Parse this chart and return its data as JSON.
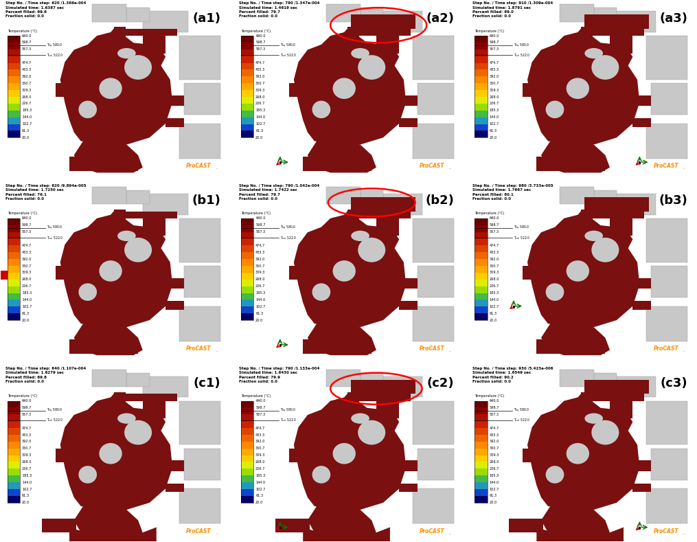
{
  "background_color": "#ffffff",
  "layout": {
    "rows": 3,
    "cols": 3,
    "figsize": [
      10.24,
      7.95
    ],
    "dpi": 100
  },
  "panels": [
    {
      "label": "(a1)",
      "row": 0,
      "col": 0,
      "step_info": "Step No. / Time step: 620 /1.366e-004",
      "sim_time": "Simulated time: 1.6387 sec",
      "percent_filled": "Percent filled: 69.6",
      "fraction_solid": "Fraction solid: 0.0",
      "has_circle": false,
      "has_compass": false
    },
    {
      "label": "(a2)",
      "row": 0,
      "col": 1,
      "step_info": "Step No. / Time step: 790 /1.347e-004",
      "sim_time": "Simulated time: 1.4619 sec",
      "percent_filled": "Percent filled: 79.7",
      "fraction_solid": "Fraction solid: 0.0",
      "has_circle": true,
      "has_compass": true,
      "compass_pos": "bottom_left"
    },
    {
      "label": "(a3)",
      "row": 0,
      "col": 2,
      "step_info": "Step No. / Time step: 910 /1.309e-004",
      "sim_time": "Simulated time: 1.8791 sec",
      "percent_filled": "Percent filled: 89.0",
      "fraction_solid": "Fraction solid: 0.0",
      "has_circle": false,
      "has_compass": true,
      "compass_pos": "bottom_right"
    },
    {
      "label": "(b1)",
      "row": 1,
      "col": 0,
      "step_info": "Step No. / Time step: 620 /9.894e-005",
      "sim_time": "Simulated time: 1.7250 sec",
      "percent_filled": "Percent filled: 76.1",
      "fraction_solid": "Fraction solid: 0.0",
      "has_circle": false,
      "has_compass": false
    },
    {
      "label": "(b2)",
      "row": 1,
      "col": 1,
      "step_info": "Step No. / Time step: 790 /1.042e-004",
      "sim_time": "Simulated time: 1.7422 sec",
      "percent_filled": "Percent filled: 79.7",
      "fraction_solid": "Fraction solid: 0.0",
      "has_circle": true,
      "has_compass": true,
      "compass_pos": "bottom_left"
    },
    {
      "label": "(b3)",
      "row": 1,
      "col": 2,
      "step_info": "Step No. / Time step: 980 /3.733e-005",
      "sim_time": "Simulated time: 1.7667 sec",
      "percent_filled": "Percent filled: 80.1",
      "fraction_solid": "Fraction solid: 0.0",
      "has_circle": false,
      "has_compass": true,
      "compass_pos": "middle_left"
    },
    {
      "label": "(c1)",
      "row": 2,
      "col": 0,
      "step_info": "Step No. / Time step: 640 /1.107e-004",
      "sim_time": "Simulated time: 1.6279 sec",
      "percent_filled": "Percent filled: 69.8",
      "fraction_solid": "Fraction solid: 0.0",
      "has_circle": false,
      "has_compass": false
    },
    {
      "label": "(c2)",
      "row": 2,
      "col": 1,
      "step_info": "Step No. / Time step: 790 /1.133e-004",
      "sim_time": "Simulated time: 1.6430 sec",
      "percent_filled": "Percent filled: 79.9",
      "fraction_solid": "Fraction solid: 0.0",
      "has_circle": true,
      "has_compass": true,
      "compass_pos": "bottom_left"
    },
    {
      "label": "(c3)",
      "row": 2,
      "col": 2,
      "step_info": "Step No. / Time step: 930 /5.423e-006",
      "sim_time": "Simulated time: 1.6549 sec",
      "percent_filled": "Percent filled: 90.2",
      "fraction_solid": "Fraction solid: 0.0",
      "has_circle": false,
      "has_compass": true,
      "compass_pos": "bottom_right"
    }
  ],
  "temp_vals": [
    640.0,
    598.7,
    557.3,
    474.7,
    433.3,
    392.0,
    350.7,
    309.3,
    268.0,
    226.7,
    185.3,
    144.0,
    102.7,
    61.3,
    20.0
  ],
  "cbar_colors": [
    "#6b0000",
    "#8b0000",
    "#aa1100",
    "#cc2200",
    "#dd4400",
    "#ee6600",
    "#ff8800",
    "#ffaa00",
    "#ffcc00",
    "#ddee00",
    "#99dd00",
    "#44bb44",
    "#2299bb",
    "#1144cc",
    "#000066"
  ],
  "T_liq": 580.0,
  "T_sol": 522.0,
  "procast_color": "#ff8c00",
  "label_fontsize": 13,
  "mold_color": "#c8c8c8",
  "cast_color": "#7a1010"
}
